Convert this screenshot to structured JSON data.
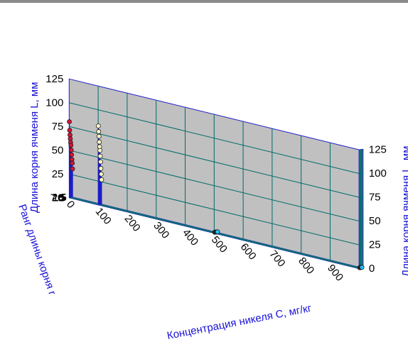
{
  "colors": {
    "back_wall": "#c0c0c0",
    "side_wall": "#9e9e9e",
    "floor": "#000000",
    "grid_on_walls": "#006b6b",
    "grid_on_floor": "#0f6f6f",
    "stem": "#1c1cc8",
    "series_points": [
      "#d2143a",
      "#fdfdc8",
      "#19c8ff"
    ],
    "axis_label": "#1a12d6"
  },
  "chart_data": {
    "type": "scatter",
    "projection": "3d",
    "series": [
      {
        "marker_color": "#d2143a",
        "points": [
          {
            "C": 0,
            "r": 12,
            "L": 80
          },
          {
            "C": 0,
            "r": 11,
            "L": 71
          },
          {
            "C": 0,
            "r": 10,
            "L": 66
          },
          {
            "C": 0,
            "r": 9,
            "L": 62
          },
          {
            "C": 0,
            "r": 8,
            "L": 58
          },
          {
            "C": 0,
            "r": 7,
            "L": 55
          },
          {
            "C": 0,
            "r": 6,
            "L": 50
          },
          {
            "C": 0,
            "r": 5,
            "L": 45
          },
          {
            "C": 0,
            "r": 4,
            "L": 40
          },
          {
            "C": 0,
            "r": 3,
            "L": 36
          },
          {
            "C": 0,
            "r": 2,
            "L": 30
          }
        ]
      },
      {
        "marker_color": "#fdfdc8",
        "points": [
          {
            "C": 100,
            "r": 12,
            "L": 83
          },
          {
            "C": 100,
            "r": 11,
            "L": 77
          },
          {
            "C": 100,
            "r": 10,
            "L": 72
          },
          {
            "C": 100,
            "r": 9,
            "L": 66
          },
          {
            "C": 100,
            "r": 8,
            "L": 61
          },
          {
            "C": 100,
            "r": 7,
            "L": 57
          },
          {
            "C": 100,
            "r": 6,
            "L": 51
          },
          {
            "C": 100,
            "r": 5,
            "L": 45
          },
          {
            "C": 100,
            "r": 4,
            "L": 38
          },
          {
            "C": 100,
            "r": 3,
            "L": 32
          },
          {
            "C": 100,
            "r": 2,
            "L": 26
          }
        ]
      },
      {
        "marker_color": "#19c8ff",
        "points": [
          {
            "C": 500,
            "r": 11,
            "L": 1
          },
          {
            "C": 500,
            "r": 10,
            "L": 1
          },
          {
            "C": 500,
            "r": 9,
            "L": 1
          },
          {
            "C": 500,
            "r": 8,
            "L": 1
          },
          {
            "C": 500,
            "r": 7,
            "L": 1
          },
          {
            "C": 500,
            "r": 6,
            "L": 1
          },
          {
            "C": 500,
            "r": 5,
            "L": 1
          },
          {
            "C": 500,
            "r": 4,
            "L": 1
          },
          {
            "C": 500,
            "r": 3,
            "L": 1
          },
          {
            "C": 500,
            "r": 2,
            "L": 1
          },
          {
            "C": 1000,
            "r": 11,
            "L": 1
          },
          {
            "C": 1000,
            "r": 10,
            "L": 1
          },
          {
            "C": 1000,
            "r": 9,
            "L": 1
          },
          {
            "C": 1000,
            "r": 8,
            "L": 1
          },
          {
            "C": 1000,
            "r": 7,
            "L": 1
          },
          {
            "C": 1000,
            "r": 6,
            "L": 1
          },
          {
            "C": 1000,
            "r": 5,
            "L": 1
          },
          {
            "C": 1000,
            "r": 4,
            "L": 1
          }
        ]
      }
    ],
    "x_axis": {
      "label": "Концентрация никеля C, мг/кг",
      "ticks": [
        0,
        100,
        200,
        300,
        400,
        500,
        600,
        700,
        800,
        900
      ],
      "range": [
        0,
        1000
      ]
    },
    "y_axis": {
      "label": "Ранг длины корня r",
      "ticks": [
        "2.5",
        "5",
        "7.5",
        "10"
      ],
      "range": [
        0,
        12.5
      ]
    },
    "z_axis": {
      "label_left": "Длина корня ячменя L, мм",
      "label_right": "Длина корня ячменя L, мм",
      "ticks": [
        0,
        25,
        50,
        75,
        100,
        125
      ],
      "range": [
        0,
        125
      ]
    },
    "grid": true
  }
}
